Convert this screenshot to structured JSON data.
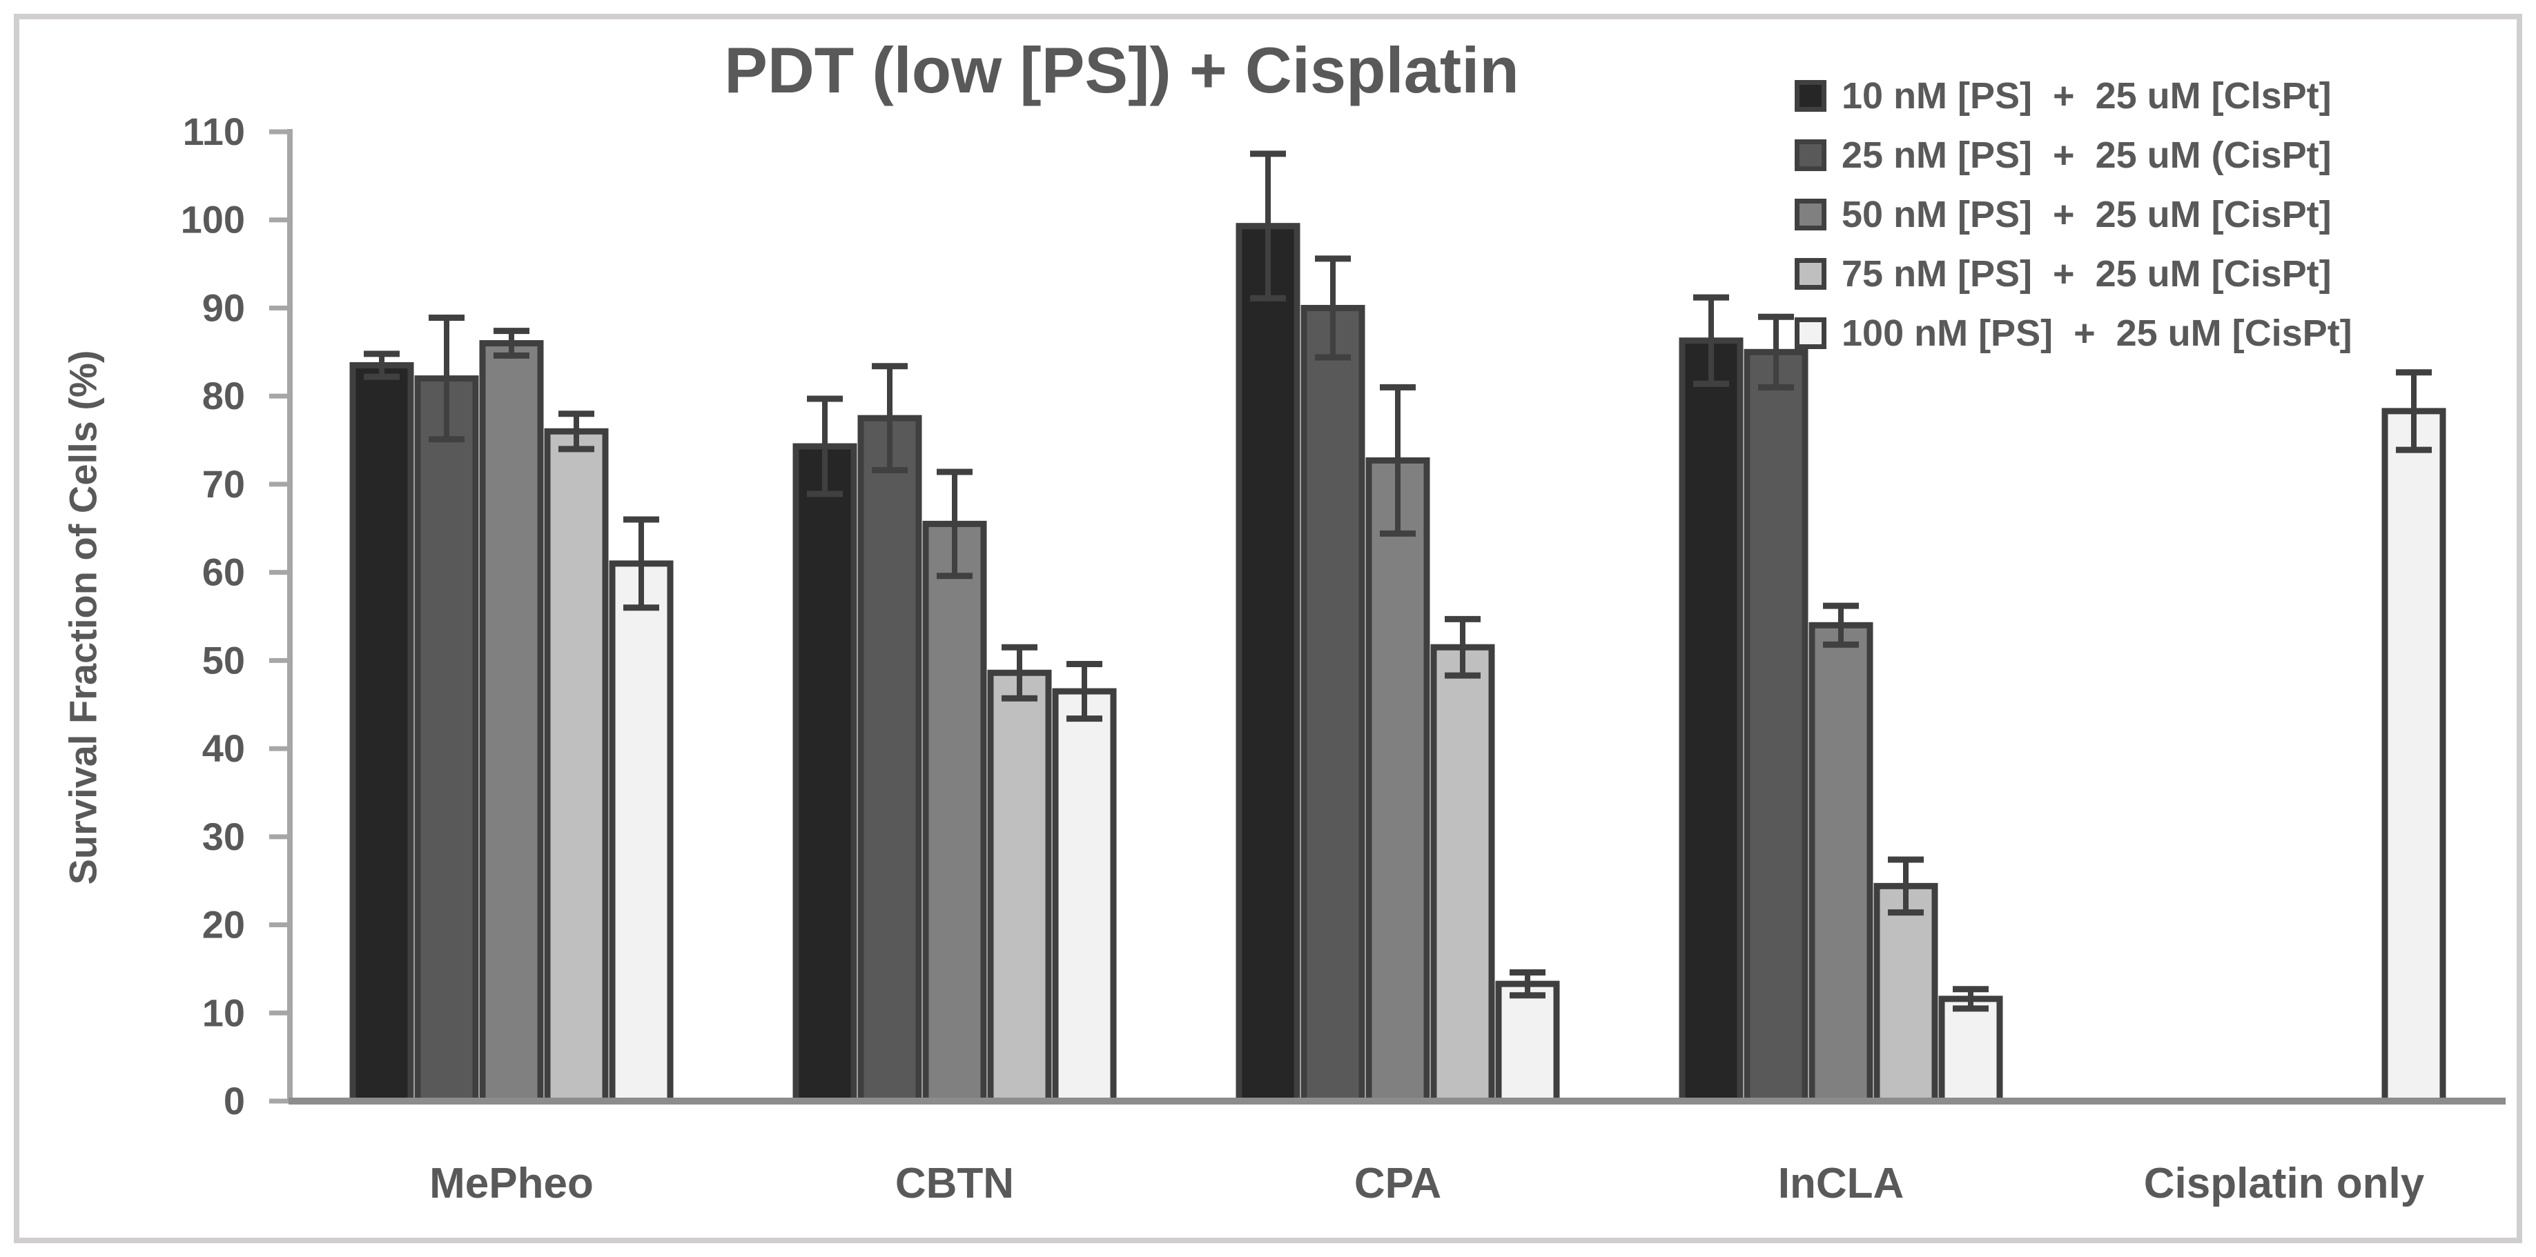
{
  "figure": {
    "title": "PDT (low [PS]) + Cisplatin",
    "y_axis_title": "Survival Fraction of Cells (%)"
  },
  "chart_data": {
    "type": "bar",
    "title": "PDT (low [PS]) + Cisplatin",
    "xlabel": "",
    "ylabel": "Survival Fraction of Cells (%)",
    "ylim": [
      0,
      110
    ],
    "ytick_step": 10,
    "ytick_labels": [
      "0",
      "10",
      "20",
      "30",
      "40",
      "50",
      "60",
      "70",
      "80",
      "90",
      "100",
      "110"
    ],
    "grid": false,
    "legend_position": "top-right",
    "categories": [
      "MePheo",
      "CBTN",
      "CPA",
      "InCLA",
      "Cisplatin only"
    ],
    "series": [
      {
        "name": "10 nM [PS]  +  25 uM [ClsPt]",
        "color": "#262626",
        "values": [
          83.5,
          74.3,
          99.3,
          86.3,
          null
        ],
        "errors": [
          1.3,
          5.4,
          8.2,
          4.9,
          null
        ]
      },
      {
        "name": "25 nM [PS]  +  25 uM (CisPt]",
        "color": "#595959",
        "values": [
          82.0,
          77.5,
          90.0,
          85.0,
          null
        ],
        "errors": [
          6.9,
          5.9,
          5.6,
          4.0,
          null
        ]
      },
      {
        "name": "50 nM [PS]  +  25 uM [CisPt]",
        "color": "#808080",
        "values": [
          86.0,
          65.5,
          72.7,
          54.0,
          null
        ],
        "errors": [
          1.4,
          5.9,
          8.3,
          2.2,
          null
        ]
      },
      {
        "name": "75 nM [PS]  +  25 uM [CisPt]",
        "color": "#bfbfbf",
        "values": [
          76.0,
          48.6,
          51.5,
          24.4,
          null
        ],
        "errors": [
          2.0,
          2.9,
          3.2,
          3.0,
          null
        ]
      },
      {
        "name": "100 nM [PS]  +  25 uM [CisPt]",
        "color": "#f2f2f2",
        "values": [
          61.0,
          46.5,
          13.3,
          11.6,
          78.3
        ],
        "errors": [
          5.0,
          3.1,
          1.3,
          1.1,
          4.4
        ]
      }
    ],
    "colors": {
      "bar_border": "#3f3f3f",
      "error_bar": "#404040",
      "y_axis_line": "#a6a6a6",
      "x_axis_line": "#8c8c8c",
      "text": "#595959",
      "figure_border": "#d0cece"
    }
  }
}
